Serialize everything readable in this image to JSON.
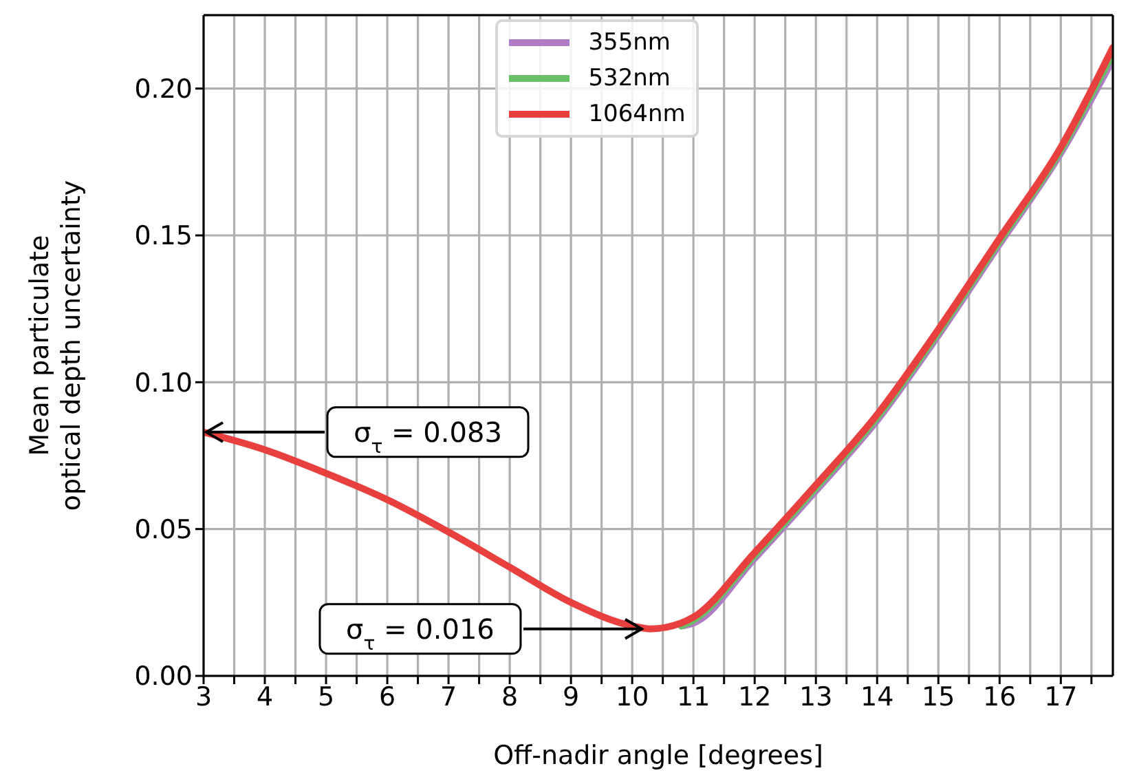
{
  "chart_data": {
    "type": "line",
    "xlabel": "Off-nadir angle [degrees]",
    "ylabel": "Mean particulate\noptical depth uncertainty",
    "xlim": [
      3,
      17.85
    ],
    "ylim": [
      0,
      0.225
    ],
    "xticks": [
      3,
      {
        "value": 3.5,
        "label": null
      },
      4,
      {
        "value": 4.5,
        "label": null
      },
      5,
      {
        "value": 5.5,
        "label": null
      },
      6,
      {
        "value": 6.5,
        "label": null
      },
      7,
      {
        "value": 7.5,
        "label": null
      },
      8,
      {
        "value": 8.5,
        "label": null
      },
      9,
      {
        "value": 9.5,
        "label": null
      },
      10,
      {
        "value": 10.5,
        "label": null
      },
      11,
      {
        "value": 11.5,
        "label": null
      },
      12,
      {
        "value": 12.5,
        "label": null
      },
      13,
      {
        "value": 13.5,
        "label": null
      },
      14,
      {
        "value": 14.5,
        "label": null
      },
      15,
      {
        "value": 15.5,
        "label": null
      },
      16,
      {
        "value": 16.5,
        "label": null
      },
      17,
      {
        "value": 17.5,
        "label": null
      }
    ],
    "yticks": [
      {
        "value": 0,
        "label": "0.00"
      },
      0.05,
      {
        "value": 0.1,
        "label": "0.10"
      },
      0.15,
      {
        "value": 0.2,
        "label": "0.20"
      }
    ],
    "x": [
      3,
      4,
      5,
      6,
      7,
      8,
      9,
      10,
      10.3,
      10.8,
      11,
      12,
      13,
      14,
      15,
      16,
      17,
      17.85
    ],
    "series": [
      {
        "name": "355nm",
        "color": "#b07cc6",
        "values": [
          null,
          null,
          null,
          null,
          null,
          null,
          null,
          null,
          null,
          0.017,
          0.018,
          0.04,
          0.063,
          0.087,
          0.116,
          0.147,
          0.178,
          0.21
        ]
      },
      {
        "name": "532nm",
        "color": "#6abf69",
        "values": [
          null,
          null,
          null,
          null,
          null,
          null,
          null,
          null,
          null,
          0.017,
          0.019,
          0.041,
          0.064,
          0.088,
          0.117,
          0.148,
          0.179,
          0.212
        ]
      },
      {
        "name": "1064nm",
        "color": "#e8403f",
        "values": [
          0.083,
          0.077,
          0.069,
          0.06,
          0.049,
          0.037,
          0.025,
          0.017,
          0.016,
          0.018,
          0.02,
          0.042,
          0.065,
          0.089,
          0.118,
          0.149,
          0.18,
          0.214
        ]
      }
    ],
    "annotations": [
      {
        "text": "σ$_{τ}$ = 0.083",
        "x": 3,
        "y": 0.083
      },
      {
        "text": "σ$_{τ}$ = 0.016",
        "x": 10.2,
        "y": 0.016
      }
    ],
    "grid": true,
    "legend": "top",
    "marker": "none",
    "line_style": "solid"
  }
}
